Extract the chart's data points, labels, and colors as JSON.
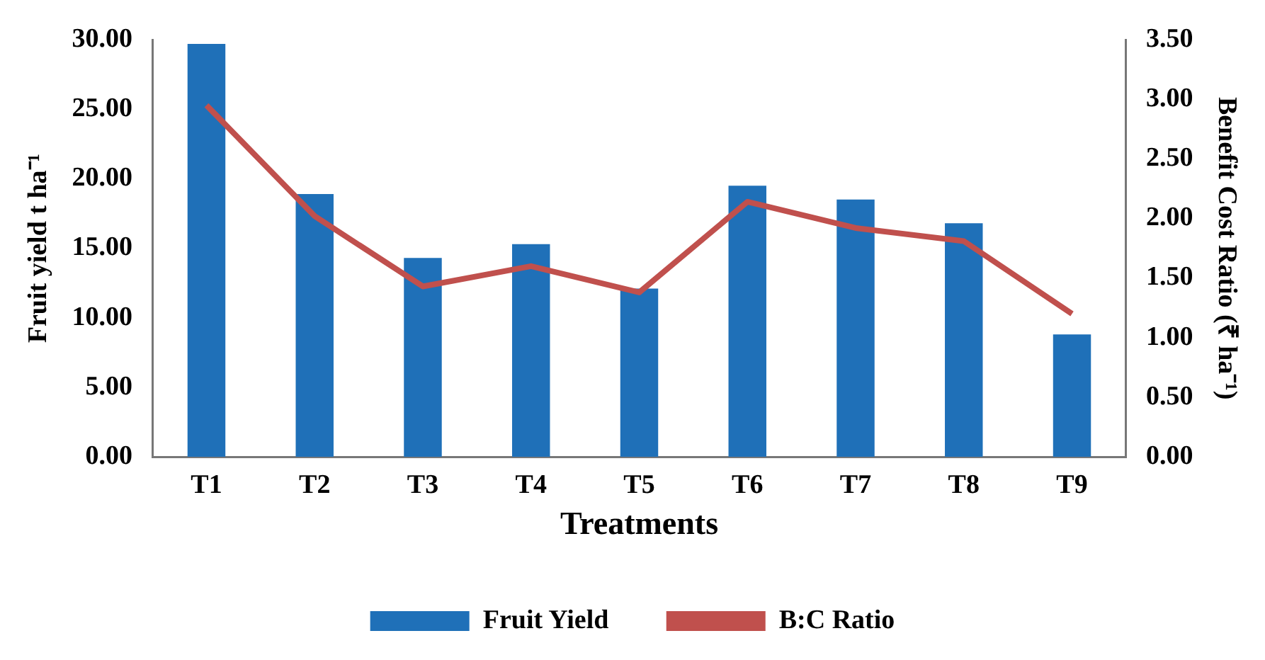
{
  "chart_data": {
    "type": "bar",
    "xlabel": "Treatments",
    "ylabel": "Fruit yield t ha⁻¹",
    "y2label": "Benefit Cost Ratio (₹ ha⁻¹)",
    "categories": [
      "T1",
      "T2",
      "T3",
      "T4",
      "T5",
      "T6",
      "T7",
      "T8",
      "T9"
    ],
    "series": [
      {
        "name": "Fruit Yield",
        "color": "#1f70b8",
        "values": [
          29.7,
          18.9,
          14.3,
          15.3,
          12.1,
          19.5,
          18.5,
          16.8,
          8.8
        ]
      },
      {
        "name": "B:C Ratio",
        "type": "line",
        "axis": "y2",
        "color": "#c0504d",
        "values": [
          2.95,
          2.02,
          1.43,
          1.6,
          1.38,
          2.14,
          1.92,
          1.81,
          1.2
        ]
      }
    ],
    "ylim": [
      0,
      30
    ],
    "yticks": [
      {
        "value": 0,
        "label": "0.00"
      },
      {
        "value": 5,
        "label": "5.00"
      },
      {
        "value": 10,
        "label": "10.00"
      },
      {
        "value": 15,
        "label": "15.00"
      },
      {
        "value": 20,
        "label": "20.00"
      },
      {
        "value": 25,
        "label": "25.00"
      },
      {
        "value": 30,
        "label": "30.00"
      }
    ],
    "y2lim": [
      0,
      3.5
    ],
    "y2ticks": [
      {
        "value": 0,
        "label": "0.00"
      },
      {
        "value": 0.5,
        "label": "0.50"
      },
      {
        "value": 1,
        "label": "1.00"
      },
      {
        "value": 1.5,
        "label": "1.50"
      },
      {
        "value": 2,
        "label": "2.00"
      },
      {
        "value": 2.5,
        "label": "2.50"
      },
      {
        "value": 3,
        "label": "3.00"
      },
      {
        "value": 3.5,
        "label": "3.50"
      }
    ],
    "grid": false,
    "legend": "bottom",
    "marker": "none",
    "line_style": "solid"
  }
}
